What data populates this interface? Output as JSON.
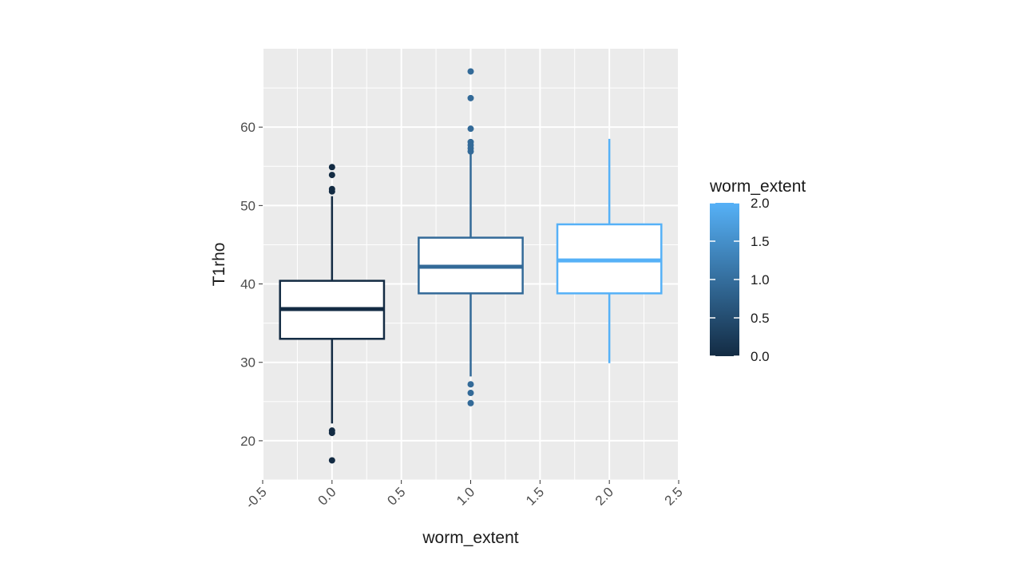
{
  "chart_data": {
    "type": "boxplot",
    "xlabel": "worm_extent",
    "ylabel": "T1rho",
    "xlim": [
      -0.5,
      2.5
    ],
    "ylim": [
      15,
      70
    ],
    "x_ticks": [
      -0.5,
      0.0,
      0.5,
      1.0,
      1.5,
      2.0,
      2.5
    ],
    "x_tick_labels": [
      "-0.5",
      "0.0",
      "0.5",
      "1.0",
      "1.5",
      "2.0",
      "2.5"
    ],
    "y_ticks": [
      20,
      30,
      40,
      50,
      60
    ],
    "y_tick_labels": [
      "20",
      "30",
      "40",
      "50",
      "60"
    ],
    "grid": true,
    "legend": {
      "title": "worm_extent",
      "type": "colorbar",
      "placement": "right",
      "range": [
        0.0,
        2.0
      ],
      "breaks": [
        0.0,
        0.5,
        1.0,
        1.5,
        2.0
      ],
      "labels": [
        "0.0",
        "0.5",
        "1.0",
        "1.5",
        "2.0"
      ],
      "color_low": "#132B43",
      "color_high": "#56B1F7"
    },
    "boxes": [
      {
        "x": 0.0,
        "color": "#132B43",
        "whisker_low": 22.2,
        "q1": 33.0,
        "median": 36.8,
        "q3": 40.4,
        "whisker_high": 51.2,
        "outliers": [
          17.5,
          21.0,
          21.3,
          51.8,
          52.1,
          53.9,
          54.9
        ]
      },
      {
        "x": 1.0,
        "color": "#336A98",
        "whisker_low": 28.2,
        "q1": 38.8,
        "median": 42.2,
        "q3": 45.9,
        "whisker_high": 56.6,
        "outliers": [
          24.8,
          26.1,
          27.2,
          56.9,
          57.3,
          57.7,
          58.1,
          59.8,
          63.7,
          67.1
        ]
      },
      {
        "x": 2.0,
        "color": "#56B1F7",
        "whisker_low": 29.9,
        "q1": 38.8,
        "median": 43.0,
        "q3": 47.6,
        "whisker_high": 58.5,
        "outliers": []
      }
    ]
  }
}
